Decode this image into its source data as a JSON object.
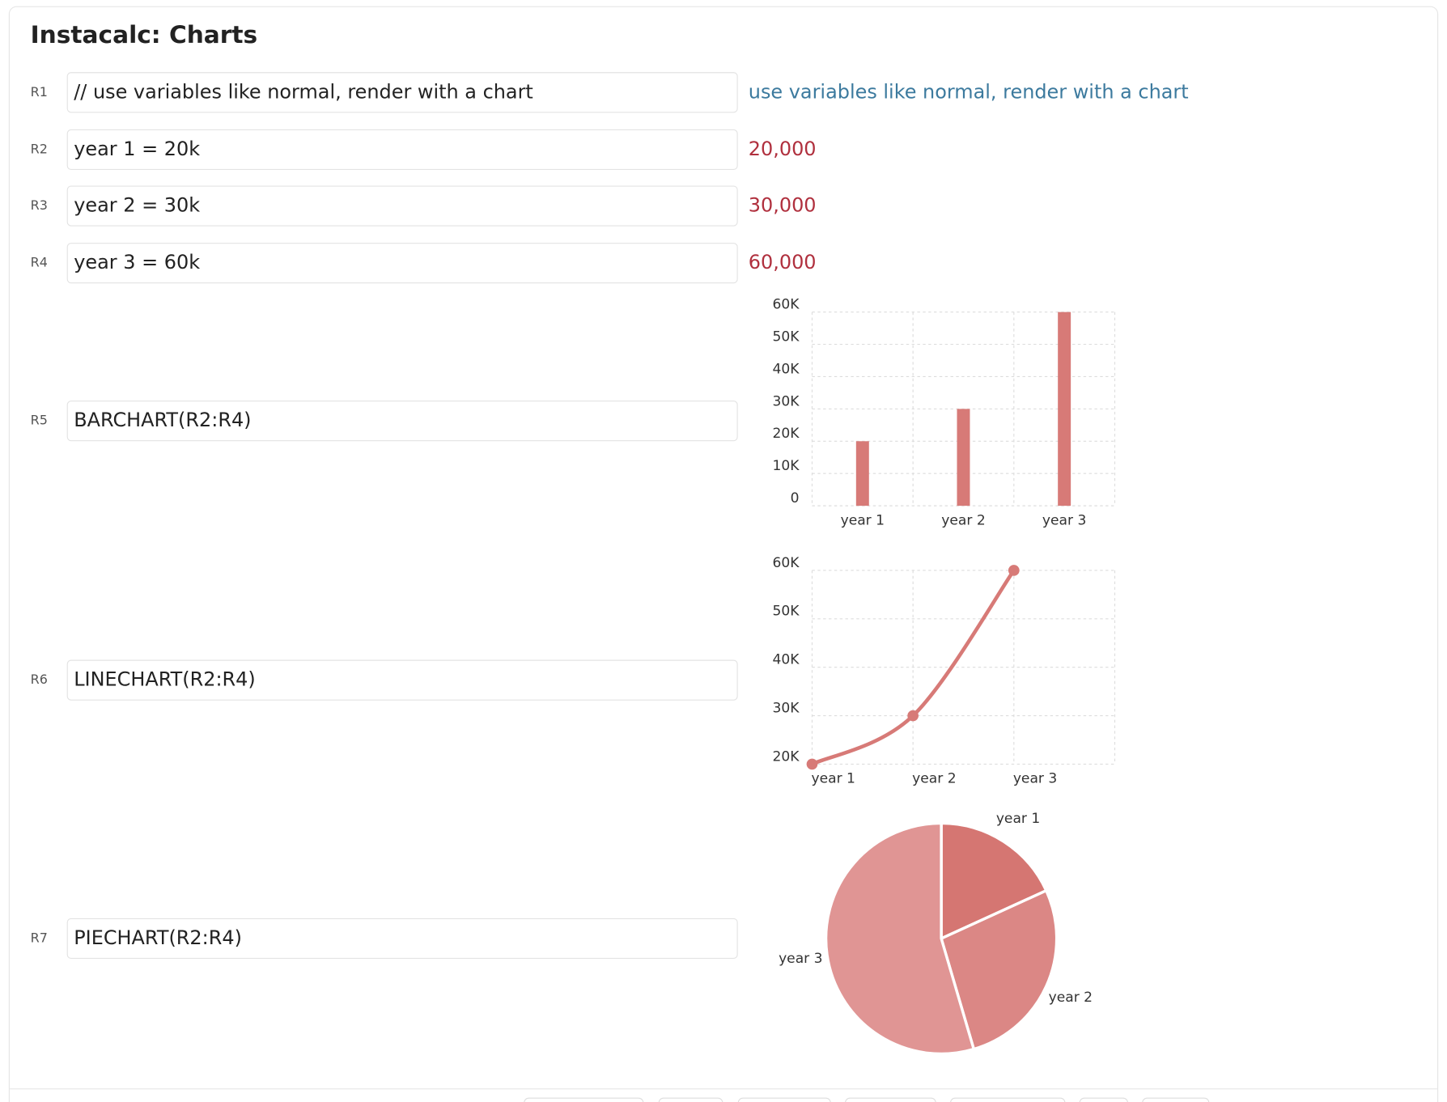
{
  "title": "Instacalc: Charts",
  "rows": [
    {
      "label": "R1",
      "input": "// use variables like normal, render with a chart",
      "output": "use variables like normal, render with a chart"
    },
    {
      "label": "R2",
      "input": "year 1 = 20k",
      "output": "20,000"
    },
    {
      "label": "R3",
      "input": "year 2 = 30k",
      "output": "30,000"
    },
    {
      "label": "R4",
      "input": "year 3 = 60k",
      "output": "60,000"
    },
    {
      "label": "R5",
      "input": "BARCHART(R2:R4)"
    },
    {
      "label": "R6",
      "input": "LINECHART(R2:R4)"
    },
    {
      "label": "R7",
      "input": "PIECHART(R2:R4)"
    }
  ],
  "chart_data": [
    {
      "type": "bar",
      "categories": [
        "year 1",
        "year 2",
        "year 3"
      ],
      "values": [
        20000,
        30000,
        60000
      ],
      "color": "#d77a77",
      "ylim": [
        0,
        60000
      ],
      "grid": true,
      "yticks": [
        0,
        {
          "value": 10000,
          "label": "10K"
        },
        {
          "value": 20000,
          "label": "20K"
        },
        {
          "value": 30000,
          "label": "30K"
        },
        {
          "value": 40000,
          "label": "40K"
        },
        {
          "value": 50000,
          "label": "50K"
        },
        {
          "value": 60000,
          "label": "60K"
        }
      ]
    },
    {
      "type": "line",
      "categories": [
        "year 1",
        "year 2",
        "year 3"
      ],
      "values": [
        20000,
        30000,
        60000
      ],
      "color": "#d77a77",
      "ylim": [
        20000,
        60000
      ],
      "grid": true,
      "yticks": [
        {
          "value": 20000,
          "label": "20K"
        },
        {
          "value": 30000,
          "label": "30K"
        },
        {
          "value": 40000,
          "label": "40K"
        },
        {
          "value": 50000,
          "label": "50K"
        },
        {
          "value": 60000,
          "label": "60K"
        }
      ]
    },
    {
      "type": "pie",
      "categories": [
        "year 1",
        "year 2",
        "year 3"
      ],
      "values": [
        20000,
        30000,
        60000
      ],
      "colors": [
        "#d57672",
        "#db8785",
        "#e09594"
      ]
    }
  ]
}
